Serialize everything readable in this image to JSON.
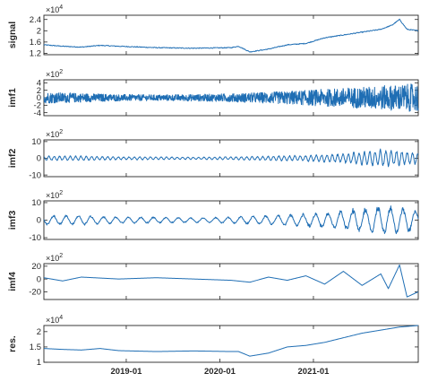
{
  "chart_data": [
    {
      "type": "line",
      "ylabel": "signal",
      "multiplier_base": "×10",
      "multiplier_exp": "4",
      "yticks": [
        1.2,
        1.6,
        2,
        2.4
      ],
      "ytick_labels": [
        "1.2",
        "1.6",
        "2",
        "2.4"
      ],
      "ylim": [
        1.15,
        2.55
      ],
      "x": [
        0,
        0.05,
        0.1,
        0.15,
        0.2,
        0.3,
        0.4,
        0.5,
        0.52,
        0.55,
        0.6,
        0.65,
        0.7,
        0.75,
        0.8,
        0.85,
        0.9,
        0.93,
        0.95,
        0.97,
        1.0
      ],
      "values": [
        1.5,
        1.45,
        1.42,
        1.48,
        1.45,
        1.4,
        1.38,
        1.4,
        1.45,
        1.25,
        1.35,
        1.5,
        1.55,
        1.75,
        1.85,
        1.95,
        2.05,
        2.2,
        2.4,
        2.05,
        2.0
      ]
    },
    {
      "type": "line",
      "ylabel": "imf1",
      "multiplier_base": "×10",
      "multiplier_exp": "2",
      "yticks": [
        -4,
        -2,
        0,
        2,
        4
      ],
      "ytick_labels": [
        "-4",
        "-2",
        "0",
        "2",
        "4"
      ],
      "ylim": [
        -4.8,
        4.8
      ],
      "x": [
        0,
        0.1,
        0.2,
        0.3,
        0.4,
        0.5,
        0.6,
        0.7,
        0.8,
        0.9,
        1.0
      ],
      "values": [
        1.5,
        1.2,
        0.9,
        0.8,
        0.9,
        1.1,
        1.5,
        2.0,
        2.6,
        3.2,
        3.8
      ]
    },
    {
      "type": "line",
      "ylabel": "imf2",
      "multiplier_base": "×10",
      "multiplier_exp": "2",
      "yticks": [
        -10,
        0,
        10
      ],
      "ytick_labels": [
        "-10",
        "0",
        "10"
      ],
      "ylim": [
        -11,
        11
      ],
      "x": [
        0,
        0.1,
        0.2,
        0.3,
        0.4,
        0.5,
        0.6,
        0.7,
        0.8,
        0.9,
        1.0
      ],
      "values": [
        1.5,
        1.5,
        1.0,
        1.0,
        0.8,
        1.0,
        1.5,
        2.0,
        3.0,
        6.0,
        4.0
      ]
    },
    {
      "type": "line",
      "ylabel": "imf3",
      "multiplier_base": "×10",
      "multiplier_exp": "2",
      "yticks": [
        -10,
        0,
        10
      ],
      "ytick_labels": [
        "-10",
        "0",
        "10"
      ],
      "ylim": [
        -11,
        11
      ],
      "x": [
        0,
        0.1,
        0.2,
        0.3,
        0.4,
        0.5,
        0.6,
        0.7,
        0.8,
        0.9,
        1.0
      ],
      "values": [
        3.0,
        3.0,
        2.0,
        2.0,
        1.5,
        2.0,
        3.0,
        4.0,
        6.0,
        9.0,
        7.0
      ]
    },
    {
      "type": "line",
      "ylabel": "imf4",
      "multiplier_base": "×10",
      "multiplier_exp": "2",
      "yticks": [
        -20,
        0,
        20
      ],
      "ytick_labels": [
        "-20",
        "0",
        "20"
      ],
      "ylim": [
        -32,
        24
      ],
      "x": [
        0,
        0.05,
        0.1,
        0.2,
        0.3,
        0.4,
        0.5,
        0.55,
        0.6,
        0.65,
        0.7,
        0.75,
        0.8,
        0.85,
        0.9,
        0.92,
        0.95,
        0.97,
        1.0
      ],
      "values": [
        2,
        -3,
        3,
        0,
        2,
        0,
        -2,
        -5,
        3,
        -2,
        5,
        -8,
        12,
        -10,
        8,
        -15,
        22,
        -28,
        -20
      ]
    },
    {
      "type": "line",
      "ylabel": "res.",
      "multiplier_base": "×10",
      "multiplier_exp": "4",
      "yticks": [
        1,
        1.5,
        2
      ],
      "ytick_labels": [
        "1",
        "1.5",
        "2"
      ],
      "ylim": [
        1.0,
        2.2
      ],
      "x": [
        0,
        0.05,
        0.1,
        0.15,
        0.2,
        0.3,
        0.4,
        0.5,
        0.52,
        0.55,
        0.6,
        0.65,
        0.7,
        0.75,
        0.8,
        0.85,
        0.9,
        0.95,
        1.0
      ],
      "values": [
        1.45,
        1.42,
        1.4,
        1.45,
        1.38,
        1.35,
        1.37,
        1.35,
        1.35,
        1.2,
        1.3,
        1.5,
        1.55,
        1.65,
        1.8,
        1.95,
        2.05,
        2.15,
        2.2
      ]
    }
  ],
  "x_axis": {
    "labels": [
      "2019-01",
      "2020-01",
      "2021-01"
    ],
    "positions": [
      0.22,
      0.47,
      0.72
    ]
  }
}
